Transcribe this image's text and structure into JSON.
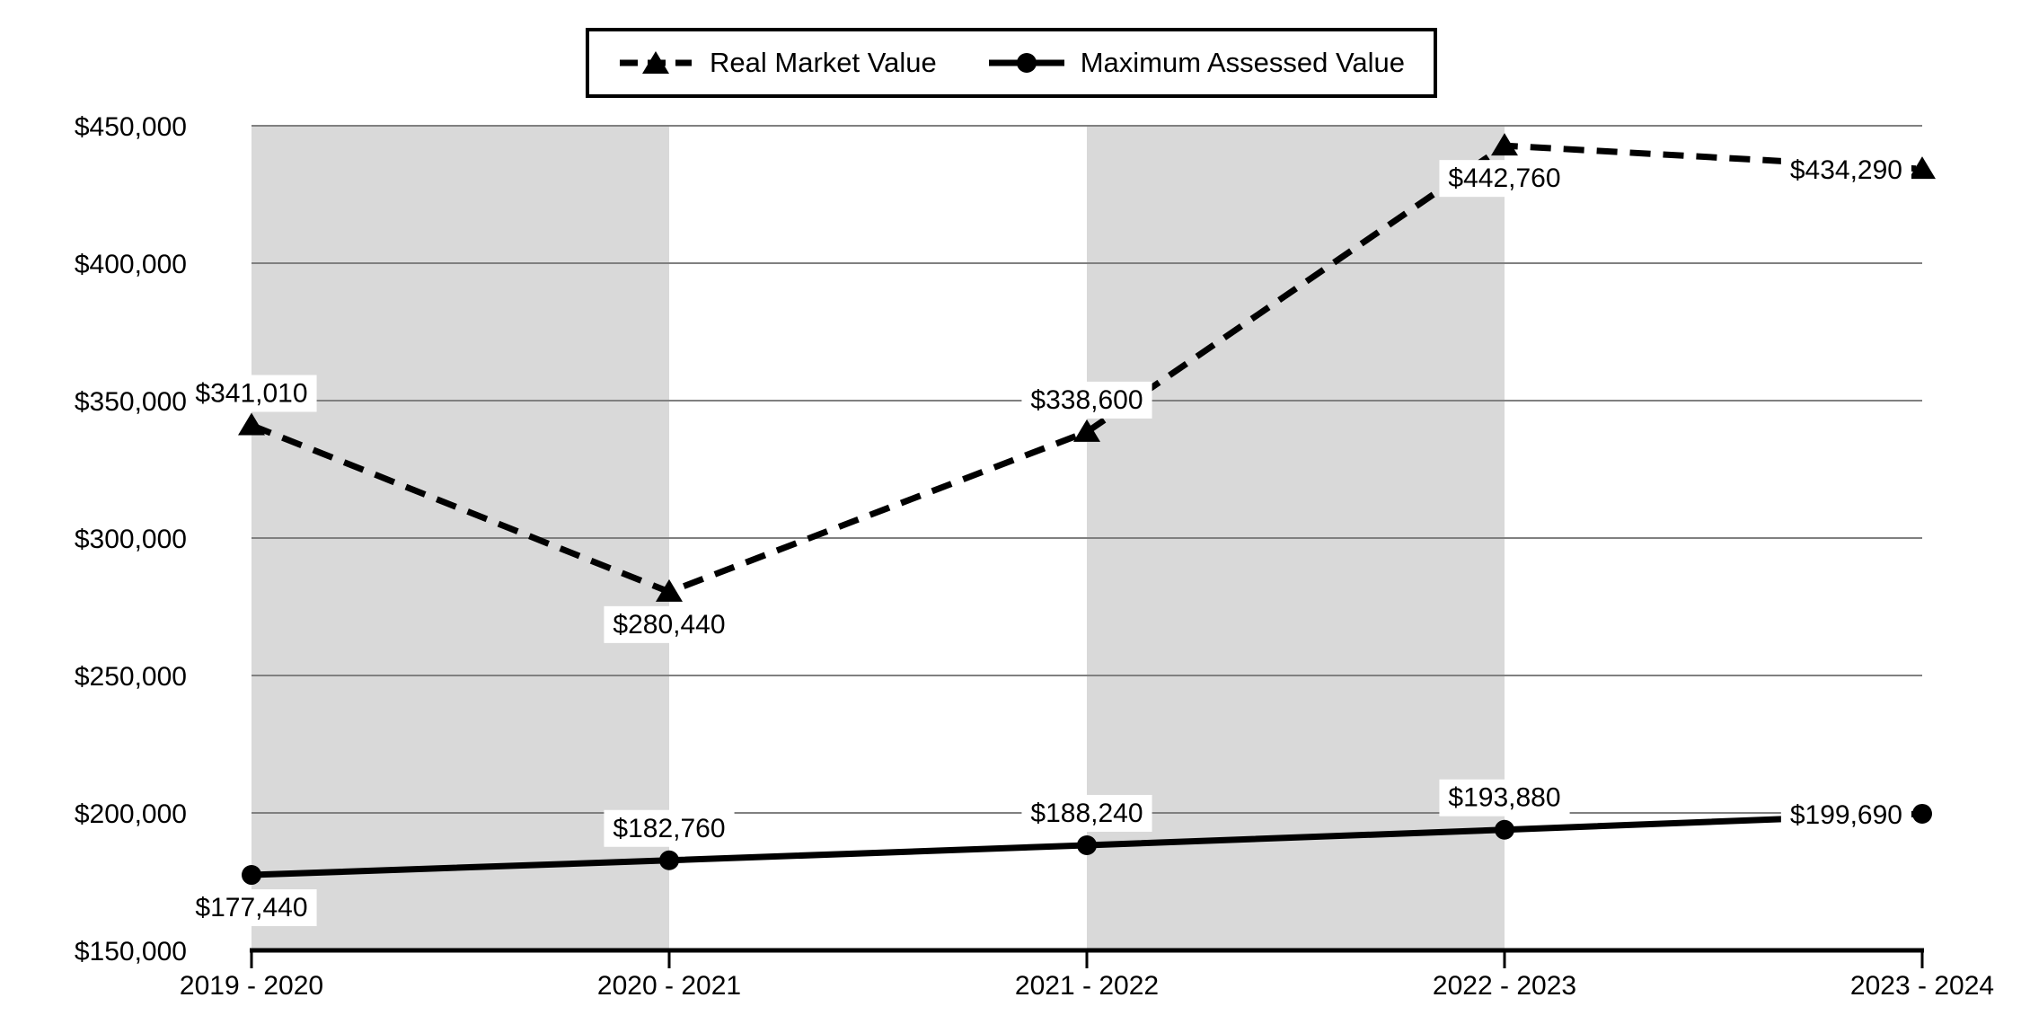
{
  "legend": {
    "items": [
      {
        "label": "Real Market Value",
        "marker": "dashed-line-triangle"
      },
      {
        "label": "Maximum Assessed Value",
        "marker": "solid-line-circle"
      }
    ]
  },
  "chart_data": {
    "type": "line",
    "title": "",
    "xlabel": "",
    "ylabel": "",
    "categories": [
      "2019 - 2020",
      "2020 - 2021",
      "2021 - 2022",
      "2022 - 2023",
      "2023 - 2024"
    ],
    "series": [
      {
        "name": "Real Market Value",
        "line_style": "dashed",
        "marker": "triangle",
        "values": [
          341010,
          280440,
          338600,
          442760,
          434290
        ],
        "labels": [
          "$341,010",
          "$280,440",
          "$338,600",
          "$442,760",
          "$434,290"
        ],
        "label_positions": [
          "above",
          "below",
          "above",
          "below",
          "left"
        ]
      },
      {
        "name": "Maximum Assessed Value",
        "line_style": "solid",
        "marker": "circle",
        "values": [
          177440,
          182760,
          188240,
          193880,
          199690
        ],
        "labels": [
          "$177,440",
          "$182,760",
          "$188,240",
          "$193,880",
          "$199,690"
        ],
        "label_positions": [
          "below",
          "above",
          "above",
          "above",
          "left"
        ]
      }
    ],
    "y_axis": {
      "min": 150000,
      "max": 450000,
      "step": 50000,
      "tick_labels": [
        "$150,000",
        "$200,000",
        "$250,000",
        "$300,000",
        "$350,000",
        "$400,000",
        "$450,000"
      ]
    },
    "grid": true,
    "legend_position": "top-center",
    "plot_bands": {
      "between_categories": [
        [
          0,
          1
        ],
        [
          2,
          3
        ]
      ]
    },
    "colors": {
      "series": "#000000",
      "gridline": "#808080",
      "band": "#d9d9d9",
      "axis": "#000000",
      "label_bg": "#ffffff",
      "background": "#ffffff"
    }
  }
}
